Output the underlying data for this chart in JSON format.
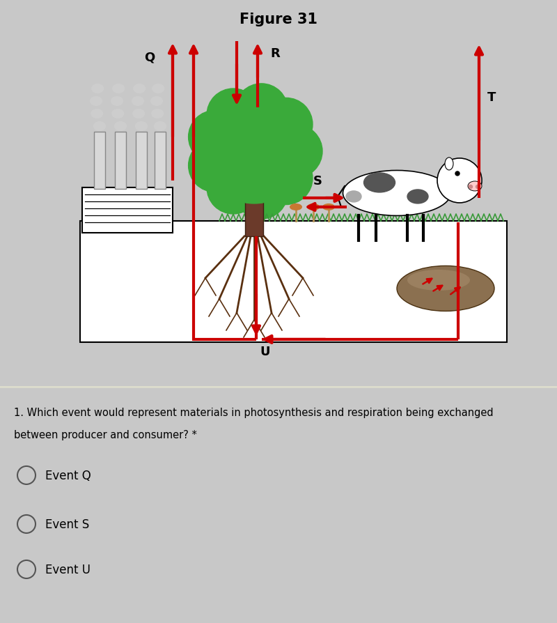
{
  "title": "Figure 31",
  "title_fontsize": 15,
  "title_fontweight": "bold",
  "bg_top": "#c8c8c8",
  "bg_bottom": "#f5f5f0",
  "arrow_color": "#cc0000",
  "arrow_lw": 3.0,
  "question_text_line1": "1. Which event would represent materials in photosynthesis and respiration being exchanged",
  "question_text_line2": "between producer and consumer? *",
  "options": [
    "Event Q",
    "Event S",
    "Event U"
  ],
  "label_Q": "Q",
  "label_R": "R",
  "label_S": "S",
  "label_T": "T",
  "label_U": "U",
  "label_fontsize": 13,
  "label_fontweight": "bold",
  "grass_color": "#3a9a3a",
  "tree_color": "#3aaa3a",
  "trunk_color": "#6b3a2a",
  "root_color": "#5a3010",
  "cow_body": "#ffffff",
  "cow_spot": "#333333",
  "factory_color": "#d8d8d8",
  "ground_color": "#f0ede0",
  "decomp_color": "#8b7050"
}
